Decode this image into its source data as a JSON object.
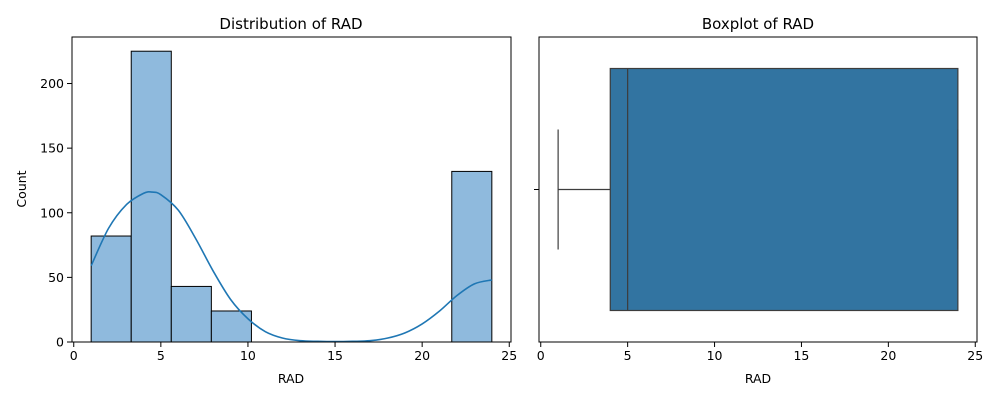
{
  "chart_data": [
    {
      "type": "bar",
      "subtype": "histogram-with-kde",
      "title": "Distribution of RAD",
      "xlabel": "RAD",
      "ylabel": "Count",
      "xlim": [
        -0.1,
        25.1
      ],
      "ylim": [
        0,
        236
      ],
      "xticks": [
        0,
        5,
        10,
        15,
        20,
        25
      ],
      "yticks": [
        0,
        50,
        100,
        150,
        200
      ],
      "bins": [
        {
          "x0": 1.0,
          "x1": 3.3,
          "value": 82
        },
        {
          "x0": 3.3,
          "x1": 5.6,
          "value": 225
        },
        {
          "x0": 5.6,
          "x1": 7.9,
          "value": 43
        },
        {
          "x0": 7.9,
          "x1": 10.2,
          "value": 24
        },
        {
          "x0": 10.2,
          "x1": 12.5,
          "value": 0
        },
        {
          "x0": 12.5,
          "x1": 14.8,
          "value": 0
        },
        {
          "x0": 14.8,
          "x1": 17.1,
          "value": 0
        },
        {
          "x0": 17.1,
          "x1": 19.4,
          "value": 0
        },
        {
          "x0": 19.4,
          "x1": 21.7,
          "value": 0
        },
        {
          "x0": 21.7,
          "x1": 24.0,
          "value": 132
        }
      ],
      "kde": {
        "x": [
          1,
          2,
          3,
          4,
          4.5,
          5,
          6,
          7,
          8,
          9,
          10,
          11,
          12,
          13,
          14,
          15,
          16,
          17,
          18,
          19,
          20,
          21,
          22,
          23,
          24
        ],
        "y": [
          59,
          88,
          106,
          115,
          116,
          114,
          102,
          80,
          55,
          33,
          18,
          8,
          3,
          1,
          0.5,
          0.3,
          0.5,
          1,
          3,
          7,
          14,
          24,
          36,
          45,
          48
        ]
      },
      "colors": {
        "bar": "#8fbadd",
        "edge": "#000000",
        "kde": "#1f77b4"
      }
    },
    {
      "type": "boxplot",
      "title": "Boxplot of RAD",
      "xlabel": "RAD",
      "ylabel": "",
      "xlim": [
        -0.1,
        25.1
      ],
      "xticks": [
        0,
        5,
        10,
        15,
        20,
        25
      ],
      "box": {
        "whisker_low": 1,
        "q1": 4,
        "median": 5,
        "q3": 24,
        "whisker_high": 24
      },
      "colors": {
        "box": "#3274a1",
        "line": "#3d3d3d"
      }
    }
  ]
}
